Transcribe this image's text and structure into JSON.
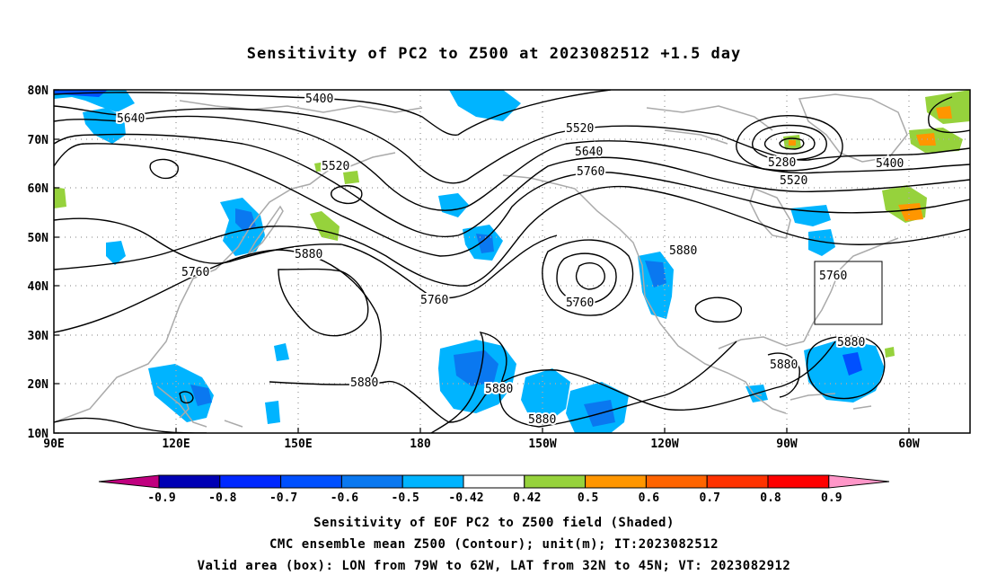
{
  "title": "Sensitivity of PC2 to Z500 at 2023082512 +1.5 day",
  "lat_labels": [
    "80N",
    "70N",
    "60N",
    "50N",
    "40N",
    "30N",
    "20N",
    "10N"
  ],
  "lon_labels": [
    "90E",
    "120E",
    "150E",
    "180",
    "150W",
    "120W",
    "90W",
    "60W"
  ],
  "contour_labels": [
    "5400",
    "5640",
    "5520",
    "5520",
    "5640",
    "5760",
    "5280",
    "5400",
    "5520",
    "5760",
    "5880",
    "5880",
    "5760",
    "5760",
    "5880",
    "5880",
    "5880",
    "5880",
    "5880",
    "5880",
    "5760"
  ],
  "colorbar": {
    "labels": [
      "-0.9",
      "-0.8",
      "-0.7",
      "-0.6",
      "-0.5",
      "-0.42",
      "0.42",
      "0.5",
      "0.6",
      "0.7",
      "0.8",
      "0.9"
    ],
    "colors": [
      "#c0007f",
      "#0000b4",
      "#0028ff",
      "#0050ff",
      "#0a78f0",
      "#00b4ff",
      "#ffffff",
      "#96d23c",
      "#ff9600",
      "#ff6400",
      "#ff3200",
      "#ff0000",
      "#ff96c8"
    ]
  },
  "captions": [
    "Sensitivity of EOF PC2 to Z500 field (Shaded)",
    "CMC ensemble mean Z500 (Contour); unit(m); IT:2023082512",
    "Valid area (box): LON from 79W to 62W, LAT from 32N to 45N; VT: 2023082912"
  ],
  "chart_data": {
    "type": "map",
    "region": {
      "lon_range": [
        "90E",
        "50W"
      ],
      "lat_range": [
        "10N",
        "80N"
      ]
    },
    "valid_box": {
      "lon": [
        "79W",
        "62W"
      ],
      "lat": [
        "32N",
        "45N"
      ]
    },
    "contour_field": "CMC ensemble mean Z500",
    "contour_levels_m": [
      5280,
      5400,
      5520,
      5640,
      5760,
      5880
    ],
    "shaded_field": "Sensitivity of EOF PC2 to Z500",
    "shading_levels": [
      -0.9,
      -0.8,
      -0.7,
      -0.6,
      -0.5,
      -0.42,
      0.42,
      0.5,
      0.6,
      0.7,
      0.8,
      0.9
    ]
  }
}
